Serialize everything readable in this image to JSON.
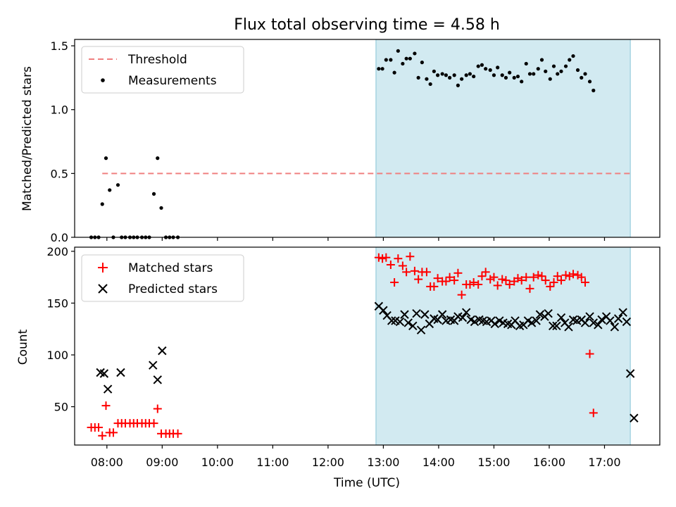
{
  "chart_data": {
    "title": "Flux total observing time = 4.58 h",
    "xlabel": "Time (UTC)",
    "x_units": "hours UTC",
    "xlim": [
      "07:25",
      "18:00"
    ],
    "xticks": [
      "08:00",
      "09:00",
      "10:00",
      "11:00",
      "12:00",
      "13:00",
      "14:00",
      "15:00",
      "16:00",
      "17:00"
    ],
    "shaded_span": {
      "start": "12:52",
      "end": "17:28",
      "color": "#add8e6"
    },
    "panels": [
      {
        "type": "scatter",
        "ylabel": "Matched/Predicted stars",
        "ylim": [
          0,
          1.55
        ],
        "yticks": [
          "0.0",
          "0.5",
          "1.0",
          "1.5"
        ],
        "legend_position": "top-left",
        "threshold": {
          "name": "Threshold",
          "value": 0.5,
          "x_start": "07:55",
          "x_end": "17:28",
          "color": "#f08080"
        },
        "series": [
          {
            "name": "Measurements",
            "marker": "dot",
            "color": "#000000",
            "points": [
              [
                "07:43",
                0
              ],
              [
                "07:47",
                0
              ],
              [
                "07:51",
                0
              ],
              [
                "07:55",
                0.26
              ],
              [
                "07:59",
                0.62
              ],
              [
                "08:03",
                0.37
              ],
              [
                "08:07",
                0
              ],
              [
                "08:12",
                0.41
              ],
              [
                "08:16",
                0
              ],
              [
                "08:20",
                0
              ],
              [
                "08:25",
                0
              ],
              [
                "08:29",
                0
              ],
              [
                "08:33",
                0
              ],
              [
                "08:38",
                0
              ],
              [
                "08:42",
                0
              ],
              [
                "08:46",
                0
              ],
              [
                "08:51",
                0.34
              ],
              [
                "08:55",
                0.62
              ],
              [
                "08:59",
                0.23
              ],
              [
                "09:04",
                0
              ],
              [
                "09:08",
                0
              ],
              [
                "09:12",
                0
              ],
              [
                "09:17",
                0
              ],
              [
                "12:55",
                1.32
              ],
              [
                "12:59",
                1.32
              ],
              [
                "13:03",
                1.39
              ],
              [
                "13:08",
                1.39
              ],
              [
                "13:12",
                1.29
              ],
              [
                "13:16",
                1.46
              ],
              [
                "13:21",
                1.36
              ],
              [
                "13:25",
                1.4
              ],
              [
                "13:29",
                1.4
              ],
              [
                "13:34",
                1.44
              ],
              [
                "13:38",
                1.25
              ],
              [
                "13:42",
                1.37
              ],
              [
                "13:47",
                1.24
              ],
              [
                "13:51",
                1.2
              ],
              [
                "13:55",
                1.3
              ],
              [
                "13:59",
                1.27
              ],
              [
                "14:04",
                1.28
              ],
              [
                "14:08",
                1.27
              ],
              [
                "14:12",
                1.25
              ],
              [
                "14:17",
                1.27
              ],
              [
                "14:21",
                1.19
              ],
              [
                "14:25",
                1.24
              ],
              [
                "14:30",
                1.27
              ],
              [
                "14:34",
                1.28
              ],
              [
                "14:38",
                1.26
              ],
              [
                "14:43",
                1.34
              ],
              [
                "14:47",
                1.35
              ],
              [
                "14:51",
                1.32
              ],
              [
                "14:56",
                1.31
              ],
              [
                "15:00",
                1.27
              ],
              [
                "15:04",
                1.33
              ],
              [
                "15:09",
                1.27
              ],
              [
                "15:13",
                1.25
              ],
              [
                "15:17",
                1.29
              ],
              [
                "15:22",
                1.25
              ],
              [
                "15:26",
                1.26
              ],
              [
                "15:30",
                1.22
              ],
              [
                "15:35",
                1.36
              ],
              [
                "15:39",
                1.28
              ],
              [
                "15:43",
                1.28
              ],
              [
                "15:48",
                1.32
              ],
              [
                "15:52",
                1.39
              ],
              [
                "15:56",
                1.3
              ],
              [
                "16:01",
                1.24
              ],
              [
                "16:05",
                1.34
              ],
              [
                "16:09",
                1.28
              ],
              [
                "16:13",
                1.3
              ],
              [
                "16:18",
                1.34
              ],
              [
                "16:22",
                1.39
              ],
              [
                "16:26",
                1.42
              ],
              [
                "16:31",
                1.31
              ],
              [
                "16:35",
                1.25
              ],
              [
                "16:39",
                1.28
              ],
              [
                "16:44",
                1.22
              ],
              [
                "16:48",
                1.15
              ]
            ]
          }
        ]
      },
      {
        "type": "scatter",
        "ylabel": "Count",
        "ylim": [
          13,
          204
        ],
        "yticks": [
          "50",
          "100",
          "150",
          "200"
        ],
        "legend_position": "top-left",
        "series": [
          {
            "name": "Matched stars",
            "marker": "plus",
            "color": "#ff0000",
            "points": [
              [
                "07:43",
                30
              ],
              [
                "07:47",
                30
              ],
              [
                "07:51",
                30
              ],
              [
                "07:55",
                22
              ],
              [
                "07:59",
                51
              ],
              [
                "08:03",
                25
              ],
              [
                "08:07",
                25
              ],
              [
                "08:12",
                34
              ],
              [
                "08:16",
                34
              ],
              [
                "08:20",
                34
              ],
              [
                "08:25",
                34
              ],
              [
                "08:29",
                34
              ],
              [
                "08:33",
                34
              ],
              [
                "08:38",
                34
              ],
              [
                "08:42",
                34
              ],
              [
                "08:46",
                34
              ],
              [
                "08:51",
                34
              ],
              [
                "08:55",
                48
              ],
              [
                "08:59",
                24
              ],
              [
                "09:04",
                24
              ],
              [
                "09:08",
                24
              ],
              [
                "09:12",
                24
              ],
              [
                "09:17",
                24
              ],
              [
                "12:55",
                194
              ],
              [
                "12:59",
                193
              ],
              [
                "13:03",
                194
              ],
              [
                "13:08",
                187
              ],
              [
                "13:12",
                170
              ],
              [
                "13:16",
                193
              ],
              [
                "13:21",
                186
              ],
              [
                "13:25",
                180
              ],
              [
                "13:29",
                195
              ],
              [
                "13:34",
                181
              ],
              [
                "13:38",
                173
              ],
              [
                "13:42",
                180
              ],
              [
                "13:47",
                180
              ],
              [
                "13:51",
                166
              ],
              [
                "13:55",
                166
              ],
              [
                "13:59",
                174
              ],
              [
                "14:04",
                171
              ],
              [
                "14:08",
                171
              ],
              [
                "14:12",
                175
              ],
              [
                "14:17",
                172
              ],
              [
                "14:21",
                179
              ],
              [
                "14:25",
                158
              ],
              [
                "14:30",
                168
              ],
              [
                "14:34",
                168
              ],
              [
                "14:38",
                170
              ],
              [
                "14:43",
                168
              ],
              [
                "14:47",
                176
              ],
              [
                "14:51",
                180
              ],
              [
                "14:56",
                173
              ],
              [
                "15:00",
                175
              ],
              [
                "15:04",
                167
              ],
              [
                "15:09",
                173
              ],
              [
                "15:13",
                172
              ],
              [
                "15:17",
                168
              ],
              [
                "15:22",
                171
              ],
              [
                "15:26",
                174
              ],
              [
                "15:30",
                172
              ],
              [
                "15:35",
                175
              ],
              [
                "15:39",
                164
              ],
              [
                "15:43",
                175
              ],
              [
                "15:48",
                177
              ],
              [
                "15:52",
                176
              ],
              [
                "15:56",
                172
              ],
              [
                "16:01",
                166
              ],
              [
                "16:05",
                170
              ],
              [
                "16:09",
                176
              ],
              [
                "16:13",
                172
              ],
              [
                "16:18",
                177
              ],
              [
                "16:22",
                176
              ],
              [
                "16:26",
                178
              ],
              [
                "16:31",
                177
              ],
              [
                "16:35",
                175
              ],
              [
                "16:39",
                170
              ],
              [
                "16:44",
                101
              ],
              [
                "16:48",
                44
              ]
            ]
          },
          {
            "name": "Predicted stars",
            "marker": "x",
            "color": "#000000",
            "points": [
              [
                "07:53",
                83
              ],
              [
                "07:57",
                82
              ],
              [
                "08:01",
                67
              ],
              [
                "08:15",
                83
              ],
              [
                "08:50",
                90
              ],
              [
                "08:55",
                76
              ],
              [
                "09:00",
                104
              ],
              [
                "12:55",
                147
              ],
              [
                "13:00",
                143
              ],
              [
                "13:04",
                138
              ],
              [
                "13:09",
                133
              ],
              [
                "13:13",
                133
              ],
              [
                "13:18",
                132
              ],
              [
                "13:23",
                139
              ],
              [
                "13:27",
                131
              ],
              [
                "13:32",
                128
              ],
              [
                "13:36",
                140
              ],
              [
                "13:41",
                124
              ],
              [
                "13:45",
                139
              ],
              [
                "13:50",
                130
              ],
              [
                "13:55",
                135
              ],
              [
                "13:59",
                134
              ],
              [
                "14:04",
                139
              ],
              [
                "14:08",
                133
              ],
              [
                "14:13",
                134
              ],
              [
                "14:17",
                133
              ],
              [
                "14:21",
                137
              ],
              [
                "14:26",
                136
              ],
              [
                "14:30",
                141
              ],
              [
                "14:35",
                134
              ],
              [
                "14:39",
                132
              ],
              [
                "14:44",
                134
              ],
              [
                "14:48",
                133
              ],
              [
                "14:52",
                132
              ],
              [
                "14:57",
                133
              ],
              [
                "15:01",
                130
              ],
              [
                "15:06",
                133
              ],
              [
                "15:10",
                131
              ],
              [
                "15:15",
                130
              ],
              [
                "15:19",
                129
              ],
              [
                "15:23",
                133
              ],
              [
                "15:28",
                128
              ],
              [
                "15:32",
                129
              ],
              [
                "15:37",
                133
              ],
              [
                "15:41",
                131
              ],
              [
                "15:46",
                133
              ],
              [
                "15:50",
                139
              ],
              [
                "15:55",
                137
              ],
              [
                "15:59",
                140
              ],
              [
                "16:04",
                128
              ],
              [
                "16:08",
                128
              ],
              [
                "16:13",
                136
              ],
              [
                "16:17",
                131
              ],
              [
                "16:21",
                127
              ],
              [
                "16:26",
                134
              ],
              [
                "16:30",
                133
              ],
              [
                "16:35",
                134
              ],
              [
                "16:39",
                131
              ],
              [
                "16:44",
                137
              ],
              [
                "16:48",
                131
              ],
              [
                "16:53",
                129
              ],
              [
                "16:57",
                134
              ],
              [
                "17:02",
                137
              ],
              [
                "17:06",
                133
              ],
              [
                "17:11",
                127
              ],
              [
                "17:15",
                135
              ],
              [
                "17:20",
                141
              ],
              [
                "17:24",
                132
              ],
              [
                "17:28",
                82
              ],
              [
                "17:32",
                39
              ]
            ]
          }
        ]
      }
    ]
  }
}
